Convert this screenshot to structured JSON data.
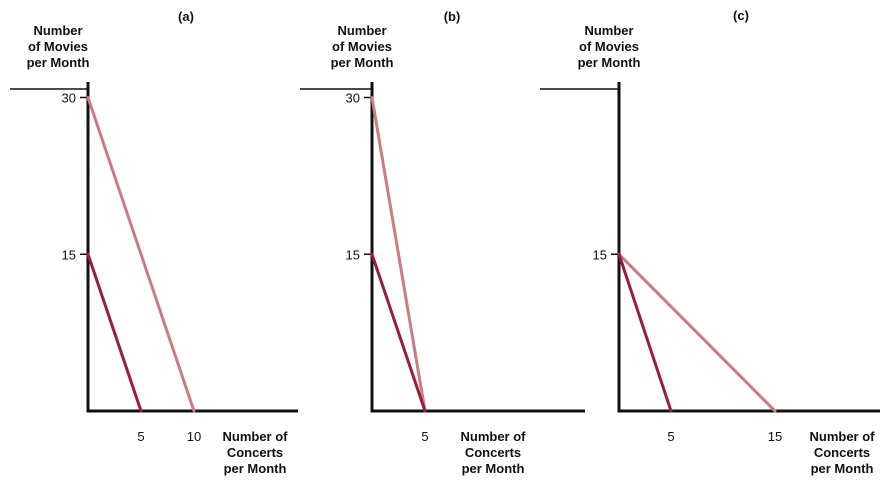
{
  "colors": {
    "original": "#9b1c3b",
    "new": "#cc7b80"
  },
  "chart_data": [
    {
      "type": "line",
      "title": "(a)",
      "ylabel": [
        "Number",
        "of Movies",
        "per Month"
      ],
      "xlabel": [
        "Number of",
        "Concerts",
        "per Month"
      ],
      "xlim": [
        0,
        20
      ],
      "ylim": [
        0,
        30
      ],
      "x_ticks": [
        5,
        10
      ],
      "y_ticks": [
        15,
        30
      ],
      "series": [
        {
          "role": "original",
          "points": [
            [
              0,
              15
            ],
            [
              5,
              0
            ]
          ]
        },
        {
          "role": "new",
          "points": [
            [
              0,
              30
            ],
            [
              10,
              0
            ]
          ]
        }
      ]
    },
    {
      "type": "line",
      "title": "(b)",
      "ylabel": [
        "Number",
        "of Movies",
        "per Month"
      ],
      "xlabel": [
        "Number of",
        "Concerts",
        "per Month"
      ],
      "xlim": [
        0,
        10
      ],
      "ylim": [
        0,
        30
      ],
      "x_ticks": [
        5
      ],
      "y_ticks": [
        15,
        30
      ],
      "series": [
        {
          "role": "original",
          "points": [
            [
              0,
              15
            ],
            [
              5,
              0
            ]
          ]
        },
        {
          "role": "new",
          "points": [
            [
              0,
              30
            ],
            [
              5,
              0
            ]
          ]
        }
      ]
    },
    {
      "type": "line",
      "title": "(c)",
      "ylabel": [
        "Number",
        "of Movies",
        "per Month"
      ],
      "xlabel": [
        "Number of",
        "Concerts",
        "per Month"
      ],
      "xlim": [
        0,
        20
      ],
      "ylim": [
        0,
        30
      ],
      "x_ticks": [
        5,
        15
      ],
      "y_ticks": [
        15
      ],
      "series": [
        {
          "role": "original",
          "points": [
            [
              0,
              15
            ],
            [
              5,
              0
            ]
          ]
        },
        {
          "role": "new",
          "points": [
            [
              0,
              15
            ],
            [
              15,
              0
            ]
          ]
        }
      ]
    }
  ]
}
